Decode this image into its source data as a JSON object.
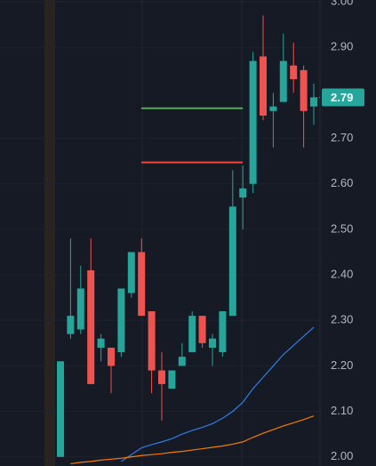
{
  "chart_data": {
    "type": "candlestick",
    "open": [
      2.0,
      2.27,
      2.28,
      2.41,
      2.24,
      2.24,
      2.23,
      2.36,
      2.45,
      2.32,
      2.19,
      2.15,
      2.2,
      2.23,
      2.31,
      2.24,
      2.23,
      2.31,
      2.57,
      2.6,
      2.88,
      2.76,
      2.78,
      2.86,
      2.85,
      2.77
    ],
    "high": [
      2.21,
      2.48,
      2.42,
      2.48,
      2.27,
      2.24,
      2.37,
      2.45,
      2.48,
      2.32,
      2.23,
      2.19,
      2.25,
      2.32,
      2.31,
      2.27,
      2.32,
      2.63,
      2.64,
      2.89,
      2.97,
      2.8,
      2.93,
      2.91,
      2.86,
      2.82
    ],
    "low": [
      2.0,
      2.26,
      2.27,
      2.16,
      2.21,
      2.14,
      2.22,
      2.35,
      2.31,
      2.14,
      2.08,
      2.15,
      2.2,
      2.23,
      2.24,
      2.2,
      2.22,
      2.31,
      2.5,
      2.58,
      2.74,
      2.68,
      2.78,
      2.8,
      2.68,
      2.73
    ],
    "close": [
      2.21,
      2.31,
      2.37,
      2.16,
      2.26,
      2.2,
      2.37,
      2.45,
      2.31,
      2.19,
      2.16,
      2.19,
      2.22,
      2.31,
      2.25,
      2.26,
      2.32,
      2.55,
      2.59,
      2.87,
      2.75,
      2.77,
      2.87,
      2.83,
      2.76,
      2.79
    ],
    "up_color": "#26a69a",
    "down_color": "#ef5350",
    "series": [
      {
        "color": "#2f7de1",
        "values": [
          null,
          null,
          null,
          null,
          null,
          null,
          1.99,
          2.005,
          2.02,
          2.027,
          2.033,
          2.04,
          2.05,
          2.058,
          2.065,
          2.073,
          2.085,
          2.1,
          2.12,
          2.15,
          2.175,
          2.2,
          2.225,
          2.245,
          2.265,
          2.285
        ]
      },
      {
        "color": "#f57c00",
        "values": [
          null,
          1.985,
          1.988,
          1.99,
          1.993,
          1.995,
          1.997,
          2.0,
          2.003,
          2.005,
          2.007,
          2.01,
          2.012,
          2.015,
          2.018,
          2.021,
          2.024,
          2.028,
          2.033,
          2.043,
          2.052,
          2.06,
          2.068,
          2.075,
          2.082,
          2.09
        ]
      }
    ],
    "levels": [
      {
        "value": 2.766,
        "color": "#4caf50"
      },
      {
        "value": 2.647,
        "color": "#f44336"
      }
    ],
    "last_price": 2.79,
    "ylim": [
      1.98,
      3.004
    ],
    "yticks": [
      {
        "value": 2.0,
        "label": "2.00"
      },
      {
        "value": 2.1,
        "label": "2.10"
      },
      {
        "value": 2.2,
        "label": "2.20"
      },
      {
        "value": 2.3,
        "label": "2.30"
      },
      {
        "value": 2.4,
        "label": "2.40"
      },
      {
        "value": 2.5,
        "label": "2.50"
      },
      {
        "value": 2.6,
        "label": "2.60"
      },
      {
        "value": 2.7,
        "label": "2.70"
      },
      {
        "value": 2.9,
        "label": "2.90"
      },
      {
        "value": 3.0,
        "label": "3.00"
      }
    ],
    "grid": true
  }
}
